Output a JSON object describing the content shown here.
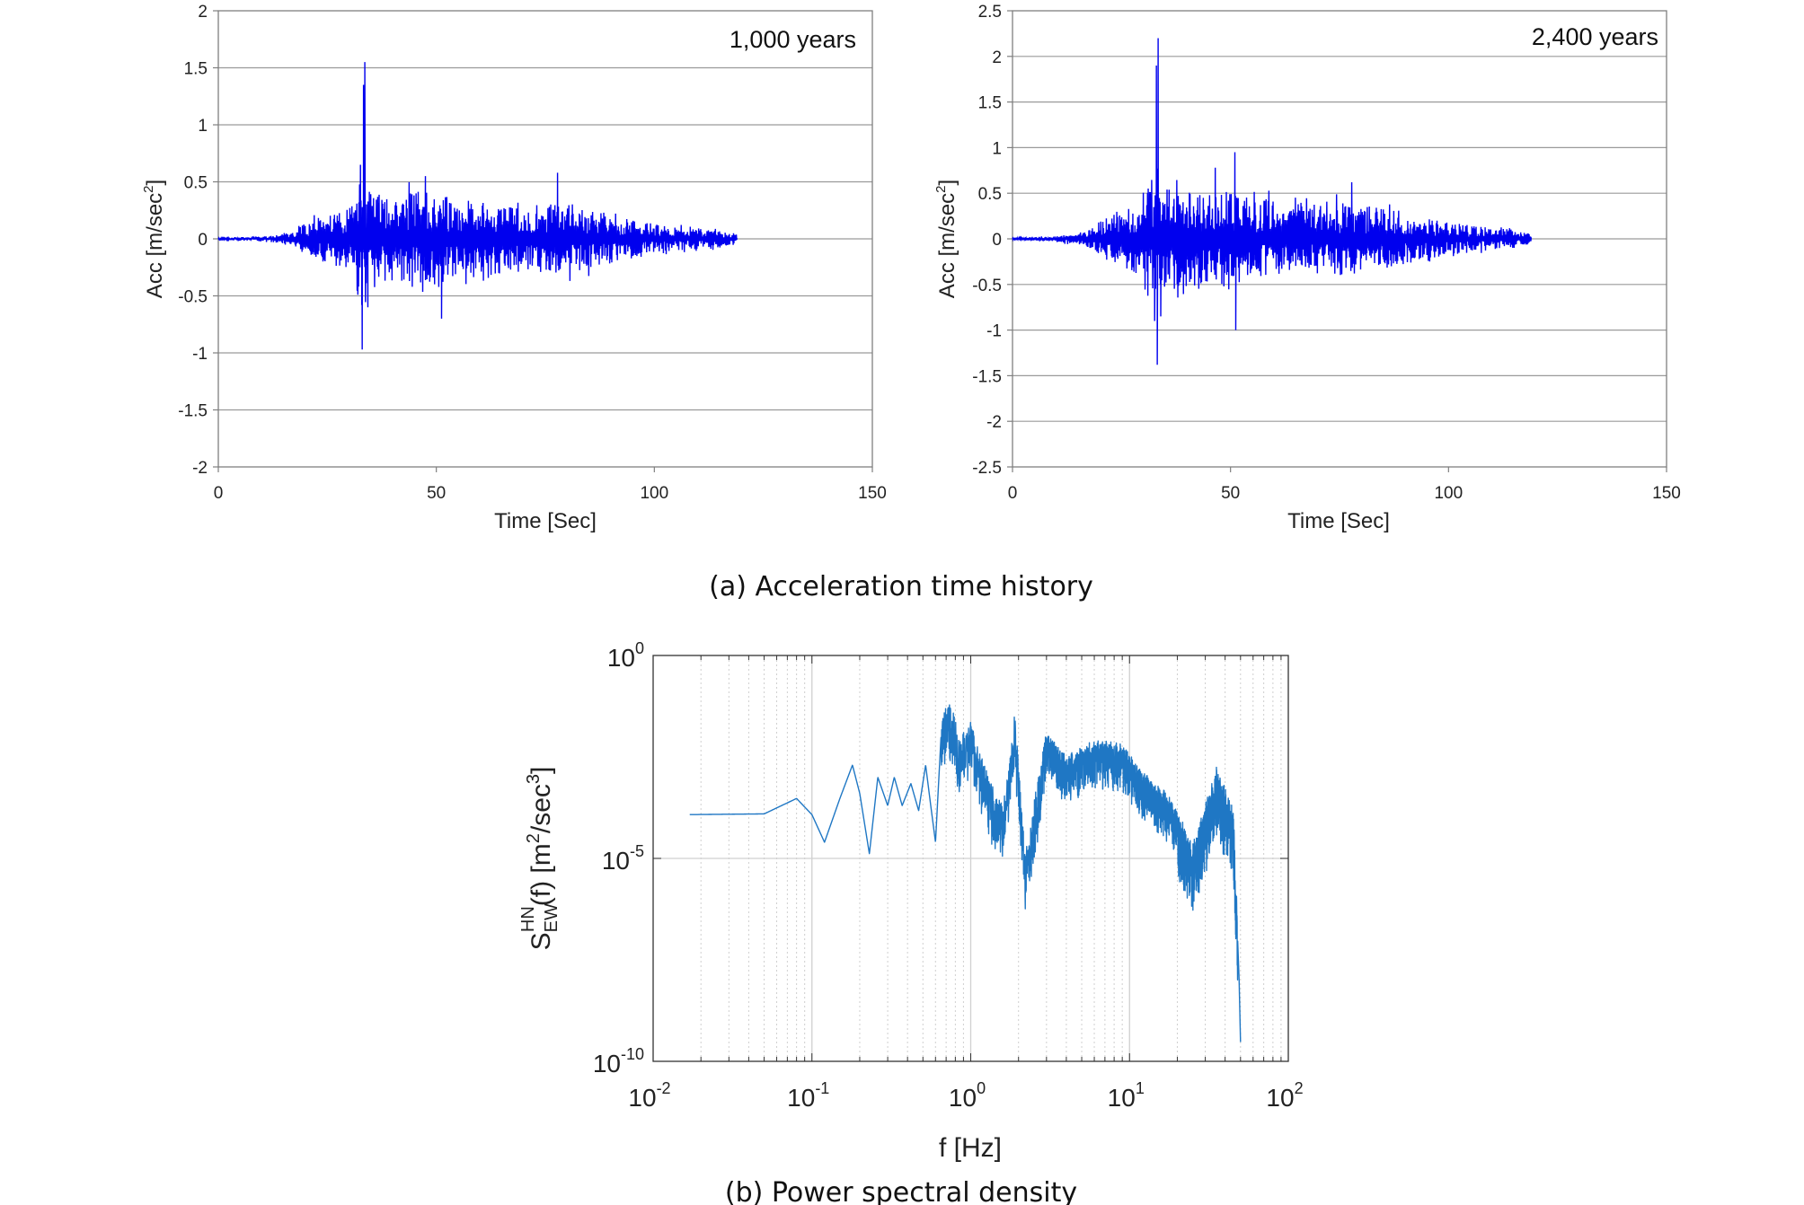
{
  "chart_data": [
    {
      "type": "line",
      "annotation": "1,000 years",
      "xlabel": "Time [Sec]",
      "ylabel": "Acc [m/sec",
      "ylabel_sup": "2",
      "ylabel_close": "]",
      "xlim": [
        0,
        150
      ],
      "ylim": [
        -2,
        2
      ],
      "xticks": [
        "0",
        "50",
        "100",
        "150"
      ],
      "yticks": [
        "-2",
        "-1.5",
        "-1",
        "-0.5",
        "0",
        "0.5",
        "1",
        "1.5",
        "2"
      ],
      "grid": "horizontal",
      "color": "#0000ee",
      "series": [
        {
          "envelope": [
            [
              0,
              0.01
            ],
            [
              10,
              0.02
            ],
            [
              17,
              0.05
            ],
            [
              20,
              0.14
            ],
            [
              25,
              0.22
            ],
            [
              30,
              0.3
            ],
            [
              32,
              0.5
            ],
            [
              34,
              0.45
            ],
            [
              36,
              0.4
            ],
            [
              40,
              0.38
            ],
            [
              45,
              0.42
            ],
            [
              50,
              0.4
            ],
            [
              55,
              0.36
            ],
            [
              60,
              0.33
            ],
            [
              65,
              0.3
            ],
            [
              70,
              0.3
            ],
            [
              75,
              0.32
            ],
            [
              80,
              0.3
            ],
            [
              85,
              0.27
            ],
            [
              90,
              0.22
            ],
            [
              95,
              0.17
            ],
            [
              100,
              0.14
            ],
            [
              105,
              0.11
            ],
            [
              110,
              0.09
            ],
            [
              115,
              0.08
            ],
            [
              119,
              0.04
            ]
          ],
          "peaks": [
            [
              33.6,
              1.55
            ],
            [
              33.3,
              1.35
            ],
            [
              33.0,
              -0.97
            ],
            [
              32.6,
              0.65
            ],
            [
              32.9,
              -0.58
            ],
            [
              34.3,
              -0.6
            ],
            [
              51.2,
              -0.7
            ],
            [
              77.8,
              0.58
            ],
            [
              47.5,
              0.55
            ]
          ]
        }
      ]
    },
    {
      "type": "line",
      "annotation": "2,400 years",
      "xlabel": "Time [Sec]",
      "ylabel": "Acc [m/sec",
      "ylabel_sup": "2",
      "ylabel_close": "]",
      "xlim": [
        0,
        150
      ],
      "ylim": [
        -2.5,
        2.5
      ],
      "xticks": [
        "0",
        "50",
        "100",
        "150"
      ],
      "yticks": [
        "-2.5",
        "-2",
        "-1.5",
        "-1",
        "-0.5",
        "0",
        "0.5",
        "1",
        "1.5",
        "2",
        "2.5"
      ],
      "grid": "horizontal",
      "color": "#0000ee",
      "series": [
        {
          "envelope": [
            [
              0,
              0.01
            ],
            [
              10,
              0.03
            ],
            [
              17,
              0.08
            ],
            [
              20,
              0.2
            ],
            [
              25,
              0.3
            ],
            [
              30,
              0.42
            ],
            [
              32,
              0.7
            ],
            [
              34,
              0.6
            ],
            [
              36,
              0.55
            ],
            [
              40,
              0.52
            ],
            [
              45,
              0.55
            ],
            [
              50,
              0.52
            ],
            [
              55,
              0.46
            ],
            [
              60,
              0.42
            ],
            [
              65,
              0.38
            ],
            [
              70,
              0.38
            ],
            [
              75,
              0.4
            ],
            [
              80,
              0.38
            ],
            [
              85,
              0.34
            ],
            [
              90,
              0.28
            ],
            [
              95,
              0.22
            ],
            [
              100,
              0.18
            ],
            [
              105,
              0.15
            ],
            [
              110,
              0.12
            ],
            [
              115,
              0.1
            ],
            [
              119,
              0.05
            ]
          ],
          "peaks": [
            [
              33.4,
              2.2
            ],
            [
              33.0,
              1.9
            ],
            [
              33.2,
              -1.38
            ],
            [
              32.6,
              -0.9
            ],
            [
              34.0,
              -0.85
            ],
            [
              51.2,
              -1.0
            ],
            [
              51.0,
              0.95
            ],
            [
              77.8,
              0.62
            ],
            [
              46.5,
              0.78
            ]
          ]
        }
      ]
    },
    {
      "type": "line",
      "xscale": "log",
      "yscale": "log",
      "xlabel": "f [Hz]",
      "ylabel_parts": [
        "S",
        "EW",
        "HN",
        "(f) [m",
        "2",
        "/sec",
        "3",
        "]"
      ],
      "xlim": [
        0.01,
        100
      ],
      "ylim": [
        1e-10,
        1
      ],
      "xtick_mantissa": [
        "10",
        "10",
        "10",
        "10",
        "10"
      ],
      "xtick_exponent": [
        "-2",
        "-1",
        "0",
        "1",
        "2"
      ],
      "ytick_mantissa": [
        "10",
        "10",
        "10"
      ],
      "ytick_exponent": [
        "0",
        "-5",
        "-10"
      ],
      "grid": "major and minor",
      "color": "#1f77c4",
      "series": [
        {
          "points": [
            [
              0.017,
              0.00012
            ],
            [
              0.05,
              0.000125
            ],
            [
              0.08,
              0.0003
            ],
            [
              0.1,
              0.00012
            ],
            [
              0.12,
              2.5e-05
            ],
            [
              0.15,
              0.0003
            ],
            [
              0.18,
              0.002
            ],
            [
              0.2,
              0.0004
            ],
            [
              0.23,
              1.3e-05
            ],
            [
              0.26,
              0.001
            ],
            [
              0.3,
              0.0002
            ],
            [
              0.33,
              0.001
            ],
            [
              0.37,
              0.0002
            ],
            [
              0.42,
              0.0007
            ],
            [
              0.47,
              0.00015
            ],
            [
              0.52,
              0.002
            ],
            [
              0.56,
              0.0002
            ],
            [
              0.6,
              2.5e-05
            ],
            [
              0.65,
              0.01
            ],
            [
              0.72,
              0.05
            ],
            [
              0.78,
              0.02
            ],
            [
              0.85,
              0.005
            ],
            [
              1.0,
              0.012
            ],
            [
              1.3,
              0.0005
            ],
            [
              1.6,
              0.0001
            ],
            [
              1.9,
              0.02
            ],
            [
              2.2,
              6e-06
            ],
            [
              3.0,
              0.008
            ],
            [
              4.0,
              0.002
            ],
            [
              6.0,
              0.005
            ],
            [
              9.0,
              0.004
            ],
            [
              12.0,
              0.0008
            ],
            [
              18.0,
              0.0002
            ],
            [
              25.0,
              1e-05
            ],
            [
              35.0,
              0.0008
            ],
            [
              45.0,
              0.0001
            ],
            [
              49.0,
              1e-08
            ],
            [
              50.0,
              3e-10
            ]
          ]
        }
      ]
    }
  ],
  "captions": {
    "a": "(a) Acceleration time history",
    "b": "(b) Power spectral density"
  }
}
